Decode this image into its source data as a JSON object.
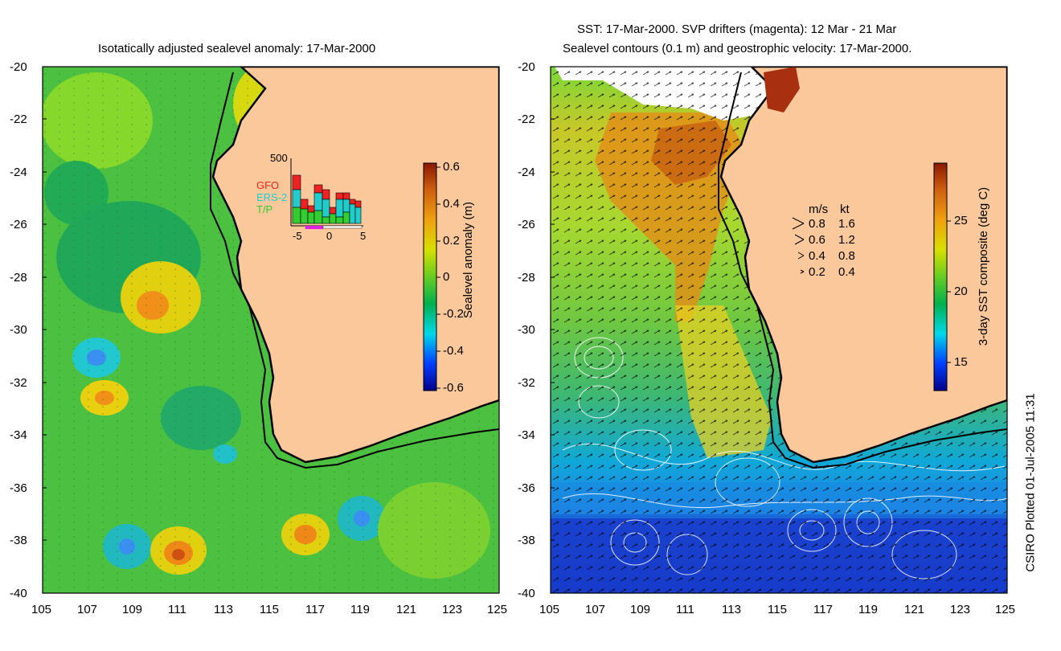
{
  "left_panel": {
    "title": "Isotatically adjusted sealevel anomaly: 17-Mar-2000",
    "colorbar_label": "Sealevel anomaly (m)",
    "colorbar_ticks": [
      "0.6",
      "0.4",
      "0.2",
      "0",
      "-0.2",
      "-0.4",
      "-0.6"
    ],
    "histogram": {
      "ymax_label": "500",
      "x_ticks": [
        "-5",
        "0",
        "5"
      ],
      "legend": [
        {
          "label": "GFO",
          "color": "#ee2222"
        },
        {
          "label": "ERS-2",
          "color": "#22cccc"
        },
        {
          "label": "T/P",
          "color": "#33cc33"
        }
      ]
    }
  },
  "right_panel": {
    "title_line1": "SST: 17-Mar-2000. SVP drifters (magenta): 12 Mar - 21 Mar",
    "title_line2": "Sealevel contours (0.1 m) and geostrophic velocity: 17-Mar-2000.",
    "colorbar_label": "3-day SST composite (deg C)",
    "colorbar_ticks": [
      "25",
      "20",
      "15"
    ],
    "speed_legend": {
      "header_ms": "m/s",
      "header_kt": "kt",
      "rows": [
        {
          "ms": "0.8",
          "kt": "1.6"
        },
        {
          "ms": "0.6",
          "kt": "1.2"
        },
        {
          "ms": "0.4",
          "kt": "0.8"
        },
        {
          "ms": "0.2",
          "kt": "0.4"
        }
      ]
    }
  },
  "axes": {
    "lat_ticks": [
      "-20",
      "-22",
      "-24",
      "-26",
      "-28",
      "-30",
      "-32",
      "-34",
      "-36",
      "-38",
      "-40"
    ],
    "lon_ticks": [
      "105",
      "107",
      "109",
      "111",
      "113",
      "115",
      "117",
      "119",
      "121",
      "123",
      "125"
    ]
  },
  "credit": "CSIRO Plotted 01-Jul-2005 11:31",
  "colors": {
    "land": "#fbc89b",
    "coast": "#000000"
  },
  "chart_data": [
    {
      "type": "heatmap",
      "title": "Isotatically adjusted sealevel anomaly: 17-Mar-2000",
      "x_range": [
        105,
        125
      ],
      "y_range": [
        -40,
        -20
      ],
      "value_range": [
        -0.6,
        0.6
      ],
      "units": "m"
    },
    {
      "type": "heatmap",
      "title": "3-day SST composite",
      "x_range": [
        105,
        125
      ],
      "y_range": [
        -40,
        -20
      ],
      "value_range": [
        13,
        29
      ],
      "units": "deg C"
    }
  ]
}
